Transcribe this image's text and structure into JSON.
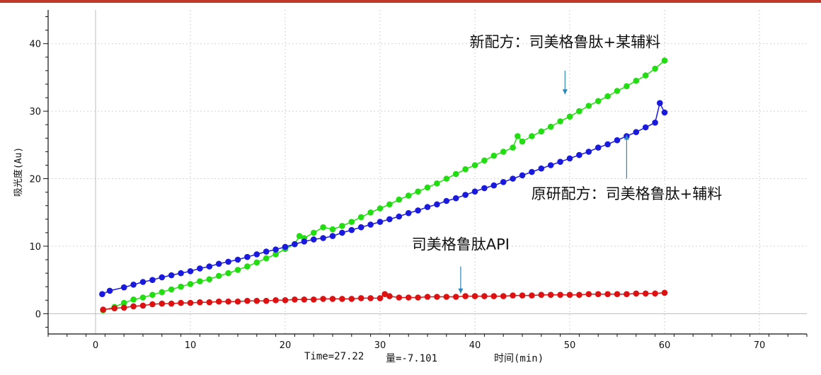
{
  "chart_data": {
    "type": "scatter",
    "xlabel": "时间(min)",
    "ylabel": "吸光度(Au)",
    "xlim": [
      -5,
      75
    ],
    "ylim": [
      -3,
      45
    ],
    "x_ticks": [
      0,
      10,
      20,
      30,
      40,
      50,
      60,
      70
    ],
    "y_ticks": [
      0,
      10,
      20,
      30,
      40
    ],
    "grid": true,
    "series": [
      {
        "name": "新配方：司美格鲁肽+某辅料",
        "color": "#22dd11",
        "points": [
          [
            0.8,
            0.5
          ],
          [
            2,
            1.0
          ],
          [
            3,
            1.6
          ],
          [
            4,
            2.1
          ],
          [
            5,
            2.4
          ],
          [
            6,
            2.8
          ],
          [
            7,
            3.2
          ],
          [
            8,
            3.6
          ],
          [
            9,
            4.0
          ],
          [
            10,
            4.4
          ],
          [
            11,
            4.8
          ],
          [
            12,
            5.1
          ],
          [
            13,
            5.6
          ],
          [
            14,
            6.0
          ],
          [
            15,
            6.5
          ],
          [
            16,
            7.0
          ],
          [
            17,
            7.6
          ],
          [
            18,
            8.2
          ],
          [
            19,
            8.8
          ],
          [
            20,
            9.6
          ],
          [
            21,
            10.3
          ],
          [
            21.5,
            11.5
          ],
          [
            22,
            11.2
          ],
          [
            23,
            12.0
          ],
          [
            24,
            12.8
          ],
          [
            25,
            12.5
          ],
          [
            26,
            13.0
          ],
          [
            27,
            13.6
          ],
          [
            28,
            14.3
          ],
          [
            29,
            15.0
          ],
          [
            30,
            15.6
          ],
          [
            31,
            16.2
          ],
          [
            32,
            16.9
          ],
          [
            33,
            17.5
          ],
          [
            34,
            18.1
          ],
          [
            35,
            18.7
          ],
          [
            36,
            19.3
          ],
          [
            37,
            20.0
          ],
          [
            38,
            20.7
          ],
          [
            39,
            21.4
          ],
          [
            40,
            22.0
          ],
          [
            41,
            22.7
          ],
          [
            42,
            23.4
          ],
          [
            43,
            24.0
          ],
          [
            44,
            24.6
          ],
          [
            44.5,
            26.3
          ],
          [
            45,
            25.5
          ],
          [
            46,
            26.3
          ],
          [
            47,
            27.0
          ],
          [
            48,
            27.7
          ],
          [
            49,
            28.5
          ],
          [
            50,
            29.2
          ],
          [
            51,
            30.0
          ],
          [
            52,
            30.8
          ],
          [
            53,
            31.5
          ],
          [
            54,
            32.2
          ],
          [
            55,
            33.0
          ],
          [
            56,
            33.7
          ],
          [
            57,
            34.5
          ],
          [
            58,
            35.3
          ],
          [
            59,
            36.3
          ],
          [
            60,
            37.5
          ]
        ]
      },
      {
        "name": "原研配方：司美格鲁肽+辅料",
        "color": "#1a1adf",
        "points": [
          [
            0.7,
            2.9
          ],
          [
            1.5,
            3.4
          ],
          [
            3,
            3.9
          ],
          [
            4,
            4.3
          ],
          [
            5,
            4.7
          ],
          [
            6,
            5.0
          ],
          [
            7,
            5.4
          ],
          [
            8,
            5.7
          ],
          [
            9,
            6.0
          ],
          [
            10,
            6.3
          ],
          [
            11,
            6.7
          ],
          [
            12,
            7.0
          ],
          [
            13,
            7.4
          ],
          [
            14,
            7.7
          ],
          [
            15,
            8.0
          ],
          [
            16,
            8.4
          ],
          [
            17,
            8.8
          ],
          [
            18,
            9.2
          ],
          [
            19,
            9.5
          ],
          [
            20,
            9.9
          ],
          [
            21,
            10.3
          ],
          [
            22,
            10.7
          ],
          [
            23,
            11.0
          ],
          [
            24,
            11.2
          ],
          [
            25,
            11.5
          ],
          [
            26,
            12.0
          ],
          [
            27,
            12.4
          ],
          [
            28,
            12.8
          ],
          [
            29,
            13.2
          ],
          [
            30,
            13.6
          ],
          [
            31,
            14.0
          ],
          [
            32,
            14.4
          ],
          [
            33,
            14.9
          ],
          [
            34,
            15.3
          ],
          [
            35,
            15.8
          ],
          [
            36,
            16.2
          ],
          [
            37,
            16.7
          ],
          [
            38,
            17.1
          ],
          [
            39,
            17.6
          ],
          [
            40,
            18.1
          ],
          [
            41,
            18.6
          ],
          [
            42,
            19.0
          ],
          [
            43,
            19.5
          ],
          [
            44,
            20.0
          ],
          [
            45,
            20.5
          ],
          [
            46,
            21.0
          ],
          [
            47,
            21.5
          ],
          [
            48,
            22.0
          ],
          [
            49,
            22.5
          ],
          [
            50,
            23.0
          ],
          [
            51,
            23.5
          ],
          [
            52,
            24.0
          ],
          [
            53,
            24.6
          ],
          [
            54,
            25.1
          ],
          [
            55,
            25.7
          ],
          [
            56,
            26.3
          ],
          [
            57,
            26.9
          ],
          [
            58,
            27.6
          ],
          [
            59,
            28.3
          ],
          [
            59.5,
            31.2
          ],
          [
            60,
            29.8
          ]
        ]
      },
      {
        "name": "司美格鲁肽API",
        "color": "#dd1111",
        "points": [
          [
            0.8,
            0.6
          ],
          [
            2,
            0.8
          ],
          [
            3,
            0.9
          ],
          [
            4,
            1.1
          ],
          [
            5,
            1.2
          ],
          [
            6,
            1.4
          ],
          [
            7,
            1.5
          ],
          [
            8,
            1.5
          ],
          [
            9,
            1.6
          ],
          [
            10,
            1.6
          ],
          [
            11,
            1.7
          ],
          [
            12,
            1.7
          ],
          [
            13,
            1.8
          ],
          [
            14,
            1.8
          ],
          [
            15,
            1.8
          ],
          [
            16,
            1.9
          ],
          [
            17,
            1.9
          ],
          [
            18,
            1.9
          ],
          [
            19,
            2.0
          ],
          [
            20,
            2.0
          ],
          [
            21,
            2.1
          ],
          [
            22,
            2.1
          ],
          [
            23,
            2.1
          ],
          [
            24,
            2.2
          ],
          [
            25,
            2.2
          ],
          [
            26,
            2.2
          ],
          [
            27,
            2.2
          ],
          [
            28,
            2.3
          ],
          [
            29,
            2.3
          ],
          [
            30,
            2.3
          ],
          [
            30.5,
            2.9
          ],
          [
            31,
            2.6
          ],
          [
            32,
            2.4
          ],
          [
            33,
            2.4
          ],
          [
            34,
            2.4
          ],
          [
            35,
            2.5
          ],
          [
            36,
            2.5
          ],
          [
            37,
            2.5
          ],
          [
            38,
            2.5
          ],
          [
            39,
            2.6
          ],
          [
            40,
            2.6
          ],
          [
            41,
            2.6
          ],
          [
            42,
            2.6
          ],
          [
            43,
            2.6
          ],
          [
            44,
            2.7
          ],
          [
            45,
            2.7
          ],
          [
            46,
            2.7
          ],
          [
            47,
            2.8
          ],
          [
            48,
            2.8
          ],
          [
            49,
            2.8
          ],
          [
            50,
            2.8
          ],
          [
            51,
            2.8
          ],
          [
            52,
            2.9
          ],
          [
            53,
            2.9
          ],
          [
            54,
            2.9
          ],
          [
            55,
            2.9
          ],
          [
            56,
            2.9
          ],
          [
            57,
            3.0
          ],
          [
            58,
            3.0
          ],
          [
            59,
            3.0
          ],
          [
            60,
            3.1
          ]
        ]
      }
    ],
    "annotations": [
      {
        "text": "新配方：司美格鲁肽+某辅料",
        "series": 0,
        "text_at": [
          49.5,
          39.5
        ],
        "arrow_from": [
          49.5,
          36
        ],
        "arrow_to": [
          49.5,
          32.5
        ]
      },
      {
        "text": "原研配方：司美格鲁肽+辅料",
        "series": 1,
        "text_at": [
          56,
          17
        ],
        "arrow_from": [
          56,
          20
        ],
        "arrow_to": [
          56,
          26.5
        ]
      },
      {
        "text": "司美格鲁肽API",
        "series": 2,
        "text_at": [
          38.5,
          9.5
        ],
        "arrow_from": [
          38.5,
          7
        ],
        "arrow_to": [
          38.5,
          3.0
        ]
      }
    ]
  },
  "status": {
    "time_readout": "Time=27.22",
    "quantity_readout": "量=-7.101"
  }
}
